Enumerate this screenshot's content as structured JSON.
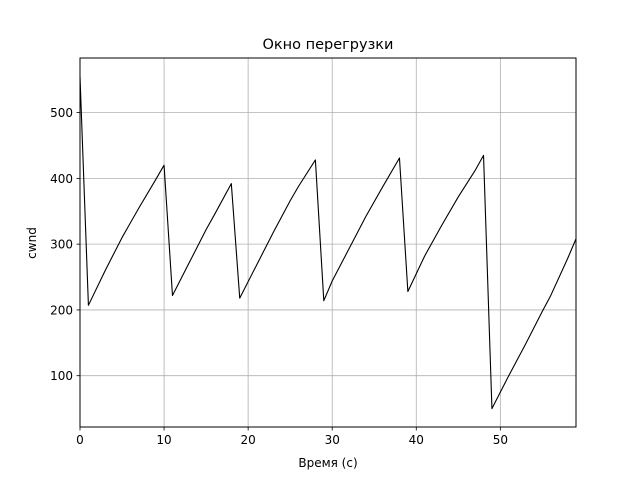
{
  "chart_data": {
    "type": "line",
    "title": "Окно перегрузки",
    "xlabel": "Время (с)",
    "ylabel": "cwnd",
    "xlim": [
      0,
      59
    ],
    "ylim": [
      22,
      583
    ],
    "xticks": [
      0,
      10,
      20,
      30,
      40,
      50
    ],
    "yticks": [
      100,
      200,
      300,
      400,
      500
    ],
    "grid": true,
    "line_color": "#000000",
    "series": [
      {
        "x": [
          0,
          1,
          3,
          5,
          7,
          9,
          10,
          11,
          13,
          15,
          16,
          18,
          19,
          21,
          23,
          25,
          26,
          28,
          29,
          30,
          32,
          34,
          36,
          38,
          39,
          41,
          43,
          45,
          47,
          48,
          49,
          51,
          53,
          55,
          56,
          58,
          59
        ],
        "y": [
          555,
          207,
          260,
          310,
          355,
          398,
          420,
          222,
          272,
          322,
          345,
          392,
          218,
          268,
          318,
          366,
          388,
          428,
          214,
          244,
          293,
          342,
          387,
          431,
          228,
          282,
          328,
          372,
          412,
          435,
          50,
          100,
          148,
          198,
          222,
          278,
          308
        ]
      }
    ]
  }
}
